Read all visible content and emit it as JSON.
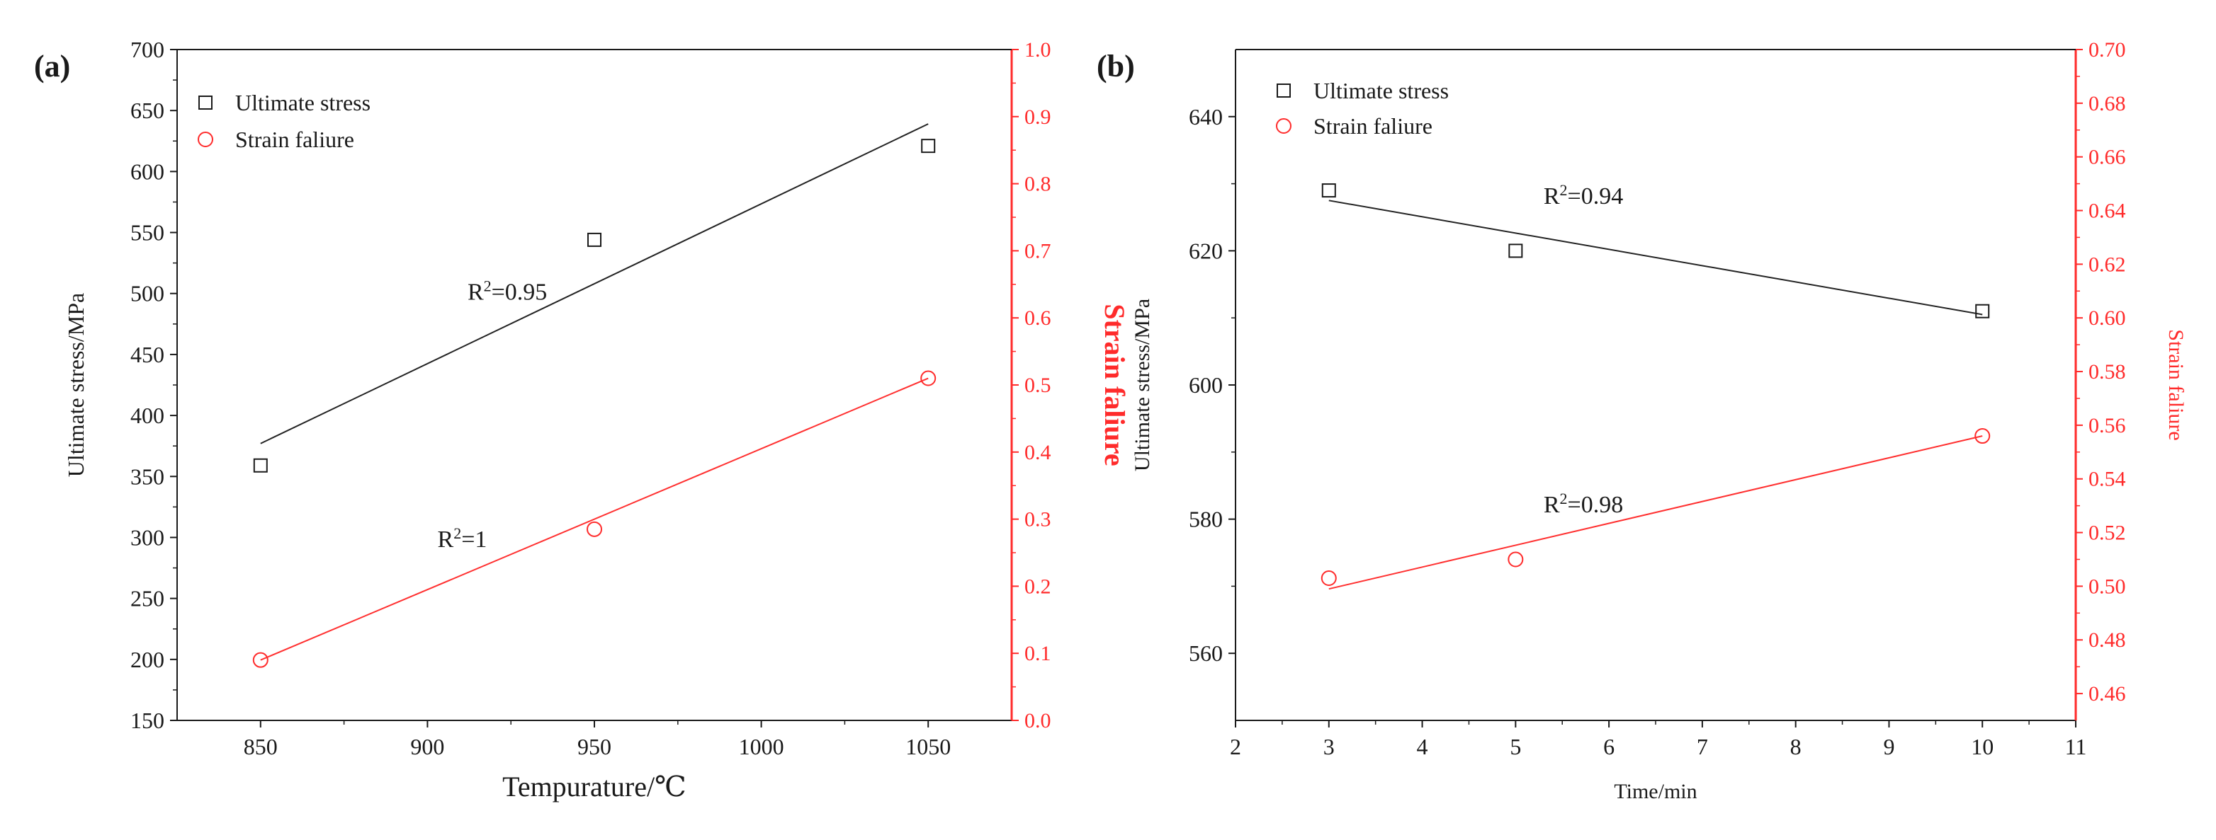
{
  "figure": {
    "colors": {
      "black": "#1a1a1a",
      "red": "#ff2b2b",
      "fit_black": "#222222",
      "fit_red": "#ff3030"
    },
    "symbols": {
      "ultimate": "open-square",
      "strain": "open-circle"
    }
  },
  "chart_data": [
    {
      "panel_label": "(a)",
      "type": "scatter",
      "xlabel": "Tempurature/℃",
      "ylabel": "Ultimate stress/MPa",
      "y2label": "Strain faliure",
      "xlim": [
        825,
        1075
      ],
      "ylim": [
        150,
        700
      ],
      "y2lim": [
        0.0,
        1.0
      ],
      "xticks": [
        850,
        900,
        950,
        1000,
        1050
      ],
      "yticks": [
        150,
        200,
        250,
        300,
        350,
        400,
        450,
        500,
        550,
        600,
        650,
        700
      ],
      "y2ticks": [
        "0.0",
        "0.1",
        "0.2",
        "0.3",
        "0.4",
        "0.5",
        "0.6",
        "0.7",
        "0.8",
        "0.9",
        "1.0"
      ],
      "legend": {
        "position": "top-left",
        "entries": [
          "Ultimate stress",
          "Strain faliure"
        ]
      },
      "series": [
        {
          "name": "Ultimate stress",
          "axis": "left",
          "marker": "square",
          "color": "black",
          "x": [
            850,
            950,
            1050
          ],
          "y": [
            359,
            544,
            621
          ],
          "fit": {
            "x": [
              850,
              1050
            ],
            "y": [
              377,
              639
            ]
          }
        },
        {
          "name": "Strain faliure",
          "axis": "right",
          "marker": "circle",
          "color": "red",
          "x": [
            850,
            950,
            1050
          ],
          "y": [
            0.09,
            0.285,
            0.51
          ],
          "fit": {
            "x": [
              850,
              1050
            ],
            "y": [
              0.09,
              0.51
            ]
          }
        }
      ],
      "annotations": [
        {
          "base": "R",
          "sup": "2",
          "rest": "=0.95",
          "axis": "left",
          "x": 912,
          "y": 495
        },
        {
          "base": "R",
          "sup": "2",
          "rest": "=1",
          "axis": "left",
          "x": 903,
          "y": 292
        }
      ]
    },
    {
      "panel_label": "(b)",
      "type": "scatter",
      "xlabel": "Time/min",
      "ylabel": "Ultimate stress/MPa",
      "y2label": "Strain faliure",
      "xlim": [
        2,
        11
      ],
      "ylim": [
        550,
        650
      ],
      "y2lim": [
        0.45,
        0.7
      ],
      "xticks": [
        2,
        3,
        4,
        5,
        6,
        7,
        8,
        9,
        10,
        11
      ],
      "yticks": [
        560,
        580,
        600,
        620,
        640
      ],
      "y2ticks": [
        "0.46",
        "0.48",
        "0.50",
        "0.52",
        "0.54",
        "0.56",
        "0.58",
        "0.60",
        "0.62",
        "0.64",
        "0.66",
        "0.68",
        "0.70"
      ],
      "legend": {
        "position": "top-left",
        "entries": [
          "Ultimate stress",
          "Strain faliure"
        ]
      },
      "series": [
        {
          "name": "Ultimate stress",
          "axis": "left",
          "marker": "square",
          "color": "black",
          "x": [
            3,
            5,
            10
          ],
          "y": [
            629,
            620,
            611
          ],
          "fit": {
            "x": [
              3,
              10
            ],
            "y": [
              627.5,
              610.5
            ]
          }
        },
        {
          "name": "Strain faliure",
          "axis": "right",
          "marker": "circle",
          "color": "red",
          "x": [
            3,
            5,
            10
          ],
          "y": [
            0.503,
            0.51,
            0.556
          ],
          "fit": {
            "x": [
              3,
              10
            ],
            "y": [
              0.499,
              0.556
            ]
          }
        }
      ],
      "annotations": [
        {
          "base": "R",
          "sup": "2",
          "rest": "=0.94",
          "axis": "left",
          "x": 5.3,
          "y": 627
        },
        {
          "base": "R",
          "sup": "2",
          "rest": "=0.98",
          "axis": "left",
          "x": 5.3,
          "y": 581
        }
      ]
    }
  ]
}
